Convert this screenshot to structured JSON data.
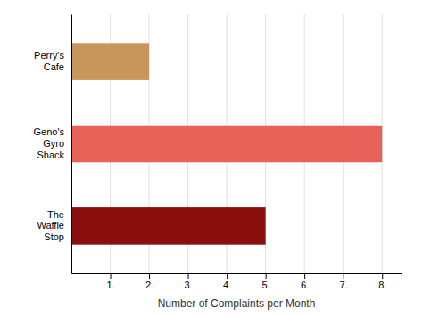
{
  "chart_data": {
    "type": "bar",
    "orientation": "horizontal",
    "categories": [
      "Perry's\nCafe",
      "Geno's\nGyro\nShack",
      "The\nWaffle\nStop"
    ],
    "values": [
      2.0,
      8.0,
      5.0
    ],
    "colors": [
      "#c8955a",
      "#e8625a",
      "#8b0f0f"
    ],
    "xlabel": "Number of Complaints per Month",
    "xlim": [
      0,
      8.5
    ],
    "xticks": [
      {
        "value": 1,
        "label": "1."
      },
      {
        "value": 2,
        "label": "2."
      },
      {
        "value": 3,
        "label": "3."
      },
      {
        "value": 4,
        "label": "4."
      },
      {
        "value": 5,
        "label": "5."
      },
      {
        "value": 6,
        "label": "6."
      },
      {
        "value": 7,
        "label": "7."
      },
      {
        "value": 8,
        "label": "8."
      }
    ],
    "grid": true
  }
}
